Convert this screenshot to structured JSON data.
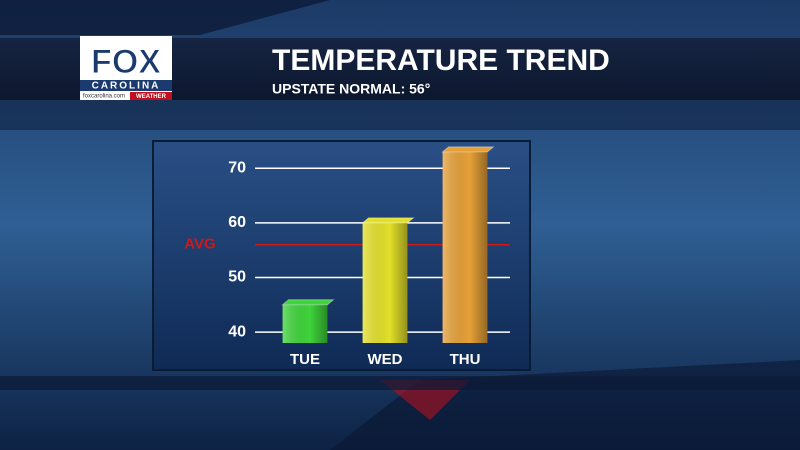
{
  "logo": {
    "brand": "FOX",
    "station": "CAROLINA",
    "website": "foxcarolina.com",
    "tag": "WEATHER"
  },
  "chart_data": {
    "type": "bar",
    "title": "TEMPERATURE TREND",
    "subtitle": "UPSTATE NORMAL: 56°",
    "categories": [
      "TUE",
      "WED",
      "THU"
    ],
    "values": [
      45,
      60,
      73
    ],
    "colors": [
      "#3fd43a",
      "#e3e02a",
      "#e6a038"
    ],
    "ylim": [
      38,
      75
    ],
    "yticks": [
      40,
      50,
      60,
      70
    ],
    "grid": true,
    "reference_line": {
      "label": "AVG",
      "value": 56,
      "color": "#d01818"
    }
  }
}
